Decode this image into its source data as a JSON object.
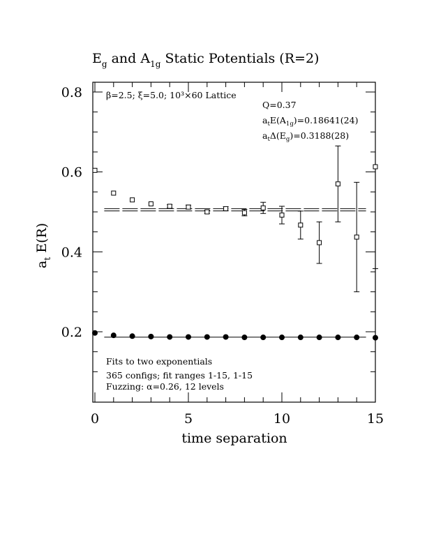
{
  "chart_data": {
    "type": "scatter",
    "title": {
      "main": "E",
      "sub_g": "g",
      "mid": " and A",
      "sub_1g": "1g",
      "tail": " Static Potentials (R=2)"
    },
    "xlabel": "time separation",
    "ylabel": {
      "a": "a",
      "sub_t": "t",
      "rest": " E(R)"
    },
    "xlim": [
      0,
      15
    ],
    "ylim": [
      0.1,
      0.82
    ],
    "x_ticks": [
      0,
      5,
      10,
      15
    ],
    "x_tick_labels": [
      "0",
      "5",
      "10",
      "15"
    ],
    "y_ticks": [
      0.2,
      0.4,
      0.6,
      0.8
    ],
    "y_tick_labels": [
      "0.2",
      "0.4",
      "0.6",
      "0.8"
    ],
    "grid": false,
    "annotations": {
      "lattice": "β=2.5; ξ=5.0; 10³×60 Lattice",
      "q": "Q=0.37",
      "e_a1g_pre": "a",
      "e_a1g_t": "t",
      "e_a1g_mid": "E(A",
      "e_a1g_sub": "1g",
      "e_a1g_val": ")=0.18641(24)",
      "d_eg_pre": "a",
      "d_eg_t": "t",
      "d_eg_mid": "Δ(E",
      "d_eg_sub": "g",
      "d_eg_val": ")=0.3188(28)",
      "fits": "Fits to two exponentials",
      "configs": "365 configs; fit ranges 1-15, 1-15",
      "fuzzing": "Fuzzing: α=0.26, 12 levels"
    },
    "series": [
      {
        "marker": "filled-circle",
        "points": [
          {
            "x": 0,
            "y": 0.197
          },
          {
            "x": 1,
            "y": 0.191
          },
          {
            "x": 2,
            "y": 0.189
          },
          {
            "x": 3,
            "y": 0.188
          },
          {
            "x": 4,
            "y": 0.187
          },
          {
            "x": 5,
            "y": 0.187
          },
          {
            "x": 6,
            "y": 0.187
          },
          {
            "x": 7,
            "y": 0.187
          },
          {
            "x": 8,
            "y": 0.186
          },
          {
            "x": 9,
            "y": 0.186
          },
          {
            "x": 10,
            "y": 0.186
          },
          {
            "x": 11,
            "y": 0.186
          },
          {
            "x": 12,
            "y": 0.186
          },
          {
            "x": 13,
            "y": 0.186
          },
          {
            "x": 14,
            "y": 0.186
          },
          {
            "x": 15,
            "y": 0.185
          }
        ],
        "fit": {
          "y": 0.18641,
          "x_range": [
            0.5,
            14.5
          ],
          "style": "solid"
        }
      },
      {
        "marker": "open-square",
        "points": [
          {
            "x": 0,
            "y": 0.604,
            "err": 0.002
          },
          {
            "x": 1,
            "y": 0.547,
            "err": 0.002
          },
          {
            "x": 2,
            "y": 0.53,
            "err": 0.003
          },
          {
            "x": 3,
            "y": 0.52,
            "err": 0.003
          },
          {
            "x": 4,
            "y": 0.514,
            "err": 0.004
          },
          {
            "x": 5,
            "y": 0.512,
            "err": 0.005
          },
          {
            "x": 6,
            "y": 0.5,
            "err": 0.004
          },
          {
            "x": 7,
            "y": 0.508,
            "err": 0.005
          },
          {
            "x": 8,
            "y": 0.498,
            "err": 0.008
          },
          {
            "x": 9,
            "y": 0.51,
            "err": 0.014
          },
          {
            "x": 10,
            "y": 0.492,
            "err": 0.022
          },
          {
            "x": 11,
            "y": 0.467,
            "err": 0.035
          },
          {
            "x": 12,
            "y": 0.423,
            "err": 0.052
          },
          {
            "x": 13,
            "y": 0.57,
            "err": 0.095
          },
          {
            "x": 14,
            "y": 0.437,
            "err": 0.137
          },
          {
            "x": 15,
            "y": 0.613,
            "err": 0.255
          }
        ],
        "fit": {
          "y": 0.5052,
          "band": 0.0028,
          "x_range": [
            0.5,
            14.5
          ],
          "style": "dashed"
        }
      }
    ]
  }
}
